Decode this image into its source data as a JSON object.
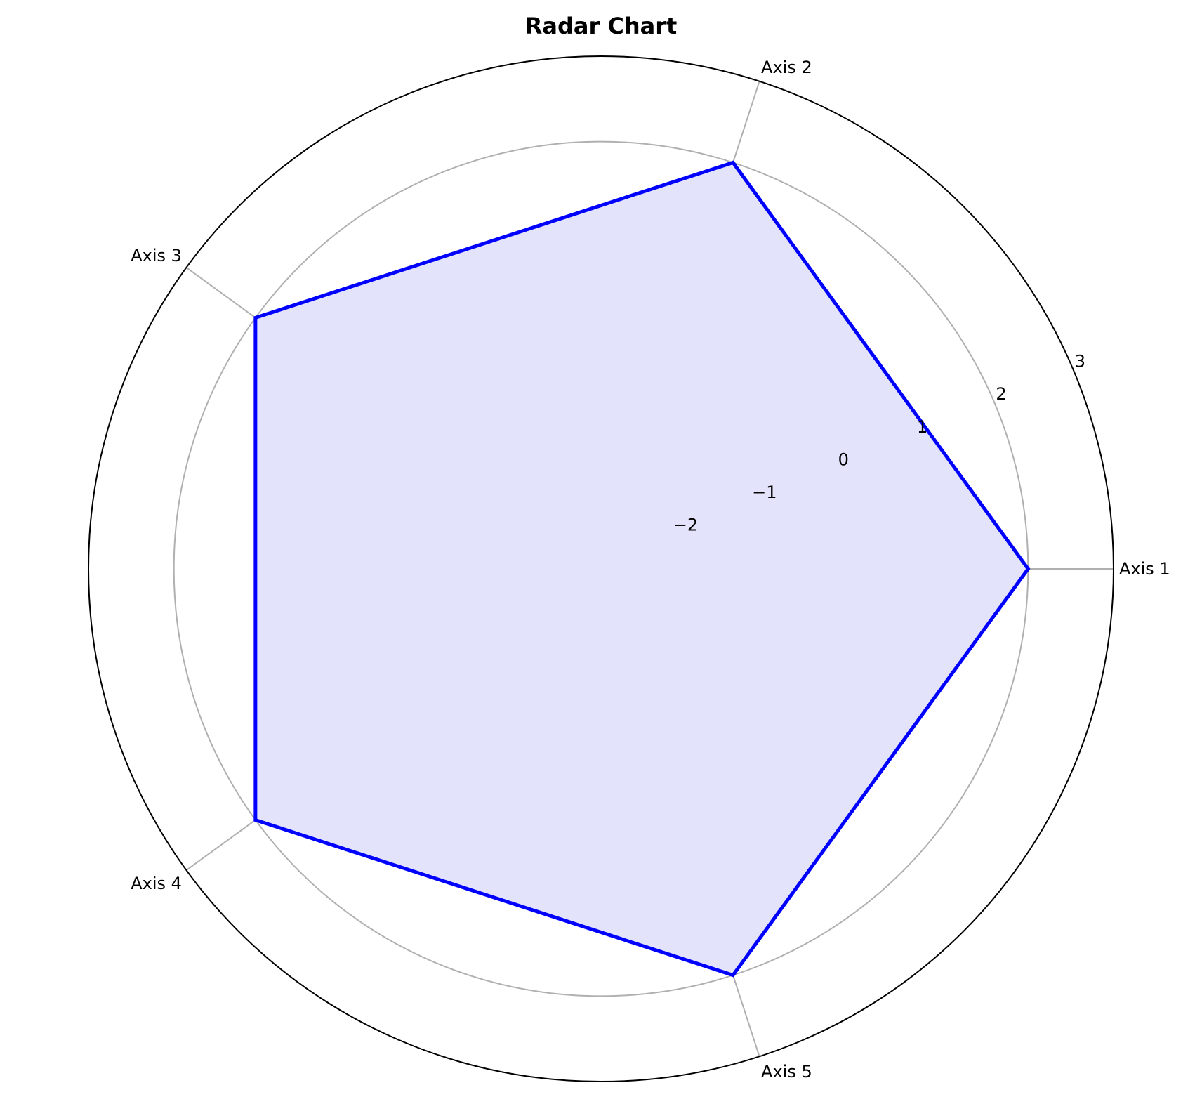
{
  "chart_data": {
    "type": "radar",
    "title": "Radar Chart",
    "axes": [
      "Axis 1",
      "Axis 2",
      "Axis 3",
      "Axis 4",
      "Axis 5"
    ],
    "values": [
      2,
      2,
      2,
      2,
      2
    ],
    "rlim": [
      -3,
      3
    ],
    "rticks": [
      -2,
      -1,
      0,
      1,
      2,
      3
    ],
    "rtick_labels": [
      "−2",
      "−1",
      "0",
      "1",
      "2",
      "3"
    ],
    "grid": true,
    "colors": {
      "line": "#0000ff",
      "fill": "#e3e3fb",
      "grid": "#b0b0b0",
      "outer_ring": "#000000"
    }
  }
}
